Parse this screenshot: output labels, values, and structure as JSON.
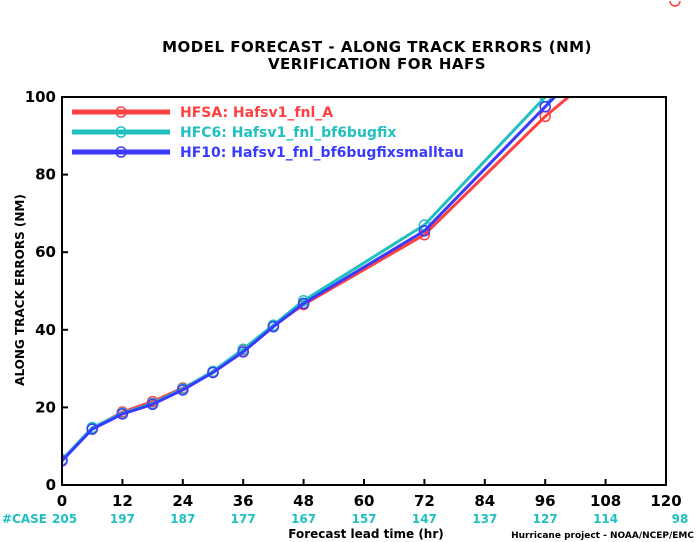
{
  "chart_data": {
    "type": "line",
    "title": "MODEL FORECAST - ALONG TRACK ERRORS (NM)",
    "subtitle": "VERIFICATION FOR HAFS",
    "xlabel": "Forecast lead time (hr)",
    "ylabel": "ALONG TRACK ERRORS (NM)",
    "xlim": [
      0,
      120
    ],
    "ylim": [
      0,
      100
    ],
    "x_ticks": [
      0,
      12,
      24,
      36,
      48,
      60,
      72,
      84,
      96,
      108,
      120
    ],
    "y_ticks": [
      0,
      20,
      40,
      60,
      80,
      100
    ],
    "grid": false,
    "legend_position": "top-left",
    "case_label": "#CASE",
    "case_counts": [
      "205",
      "197",
      "187",
      "177",
      "167",
      "157",
      "147",
      "137",
      "127",
      "114",
      "98"
    ],
    "series": [
      {
        "name": "HFSA:  Hafsv1_fnl_A",
        "color": "#ff4040",
        "x": [
          0,
          6,
          12,
          18,
          24,
          30,
          36,
          42,
          48,
          72,
          96,
          102
        ],
        "y": [
          6.5,
          14.5,
          18.8,
          21.5,
          25.0,
          29.0,
          34.8,
          41.0,
          46.5,
          64.5,
          95.0,
          101.5
        ],
        "markers_x": [
          0,
          6,
          12,
          18,
          24,
          30,
          36,
          42,
          48,
          72,
          96
        ]
      },
      {
        "name": "HFC6:  Hafsv1_fnl_bf6bugfix",
        "color": "#20c0c0",
        "x": [
          0,
          6,
          12,
          18,
          24,
          30,
          36,
          42,
          48,
          72,
          96,
          97
        ],
        "y": [
          6.5,
          14.8,
          18.5,
          21.0,
          24.8,
          29.3,
          35.0,
          41.2,
          47.5,
          67.0,
          100.0,
          101.5
        ],
        "markers_x": [
          0,
          6,
          12,
          18,
          24,
          30,
          36,
          42,
          48,
          72,
          96
        ]
      },
      {
        "name": "HF10:  Hafsv1_fnl_bf6bugfixsmalltau",
        "color": "#3a3aff",
        "x": [
          0,
          6,
          12,
          18,
          24,
          30,
          36,
          42,
          48,
          72,
          96,
          99
        ],
        "y": [
          6.2,
          14.4,
          18.3,
          20.8,
          24.5,
          29.0,
          34.3,
          40.8,
          46.8,
          65.5,
          97.5,
          101.5
        ],
        "markers_x": [
          0,
          6,
          12,
          18,
          24,
          30,
          36,
          42,
          48,
          72,
          96
        ]
      }
    ]
  },
  "footer": "Hurricane project - NOAA/NCEP/EMC",
  "colors": {
    "case_counts": "#20c0c0",
    "logo": "#ff4040"
  }
}
